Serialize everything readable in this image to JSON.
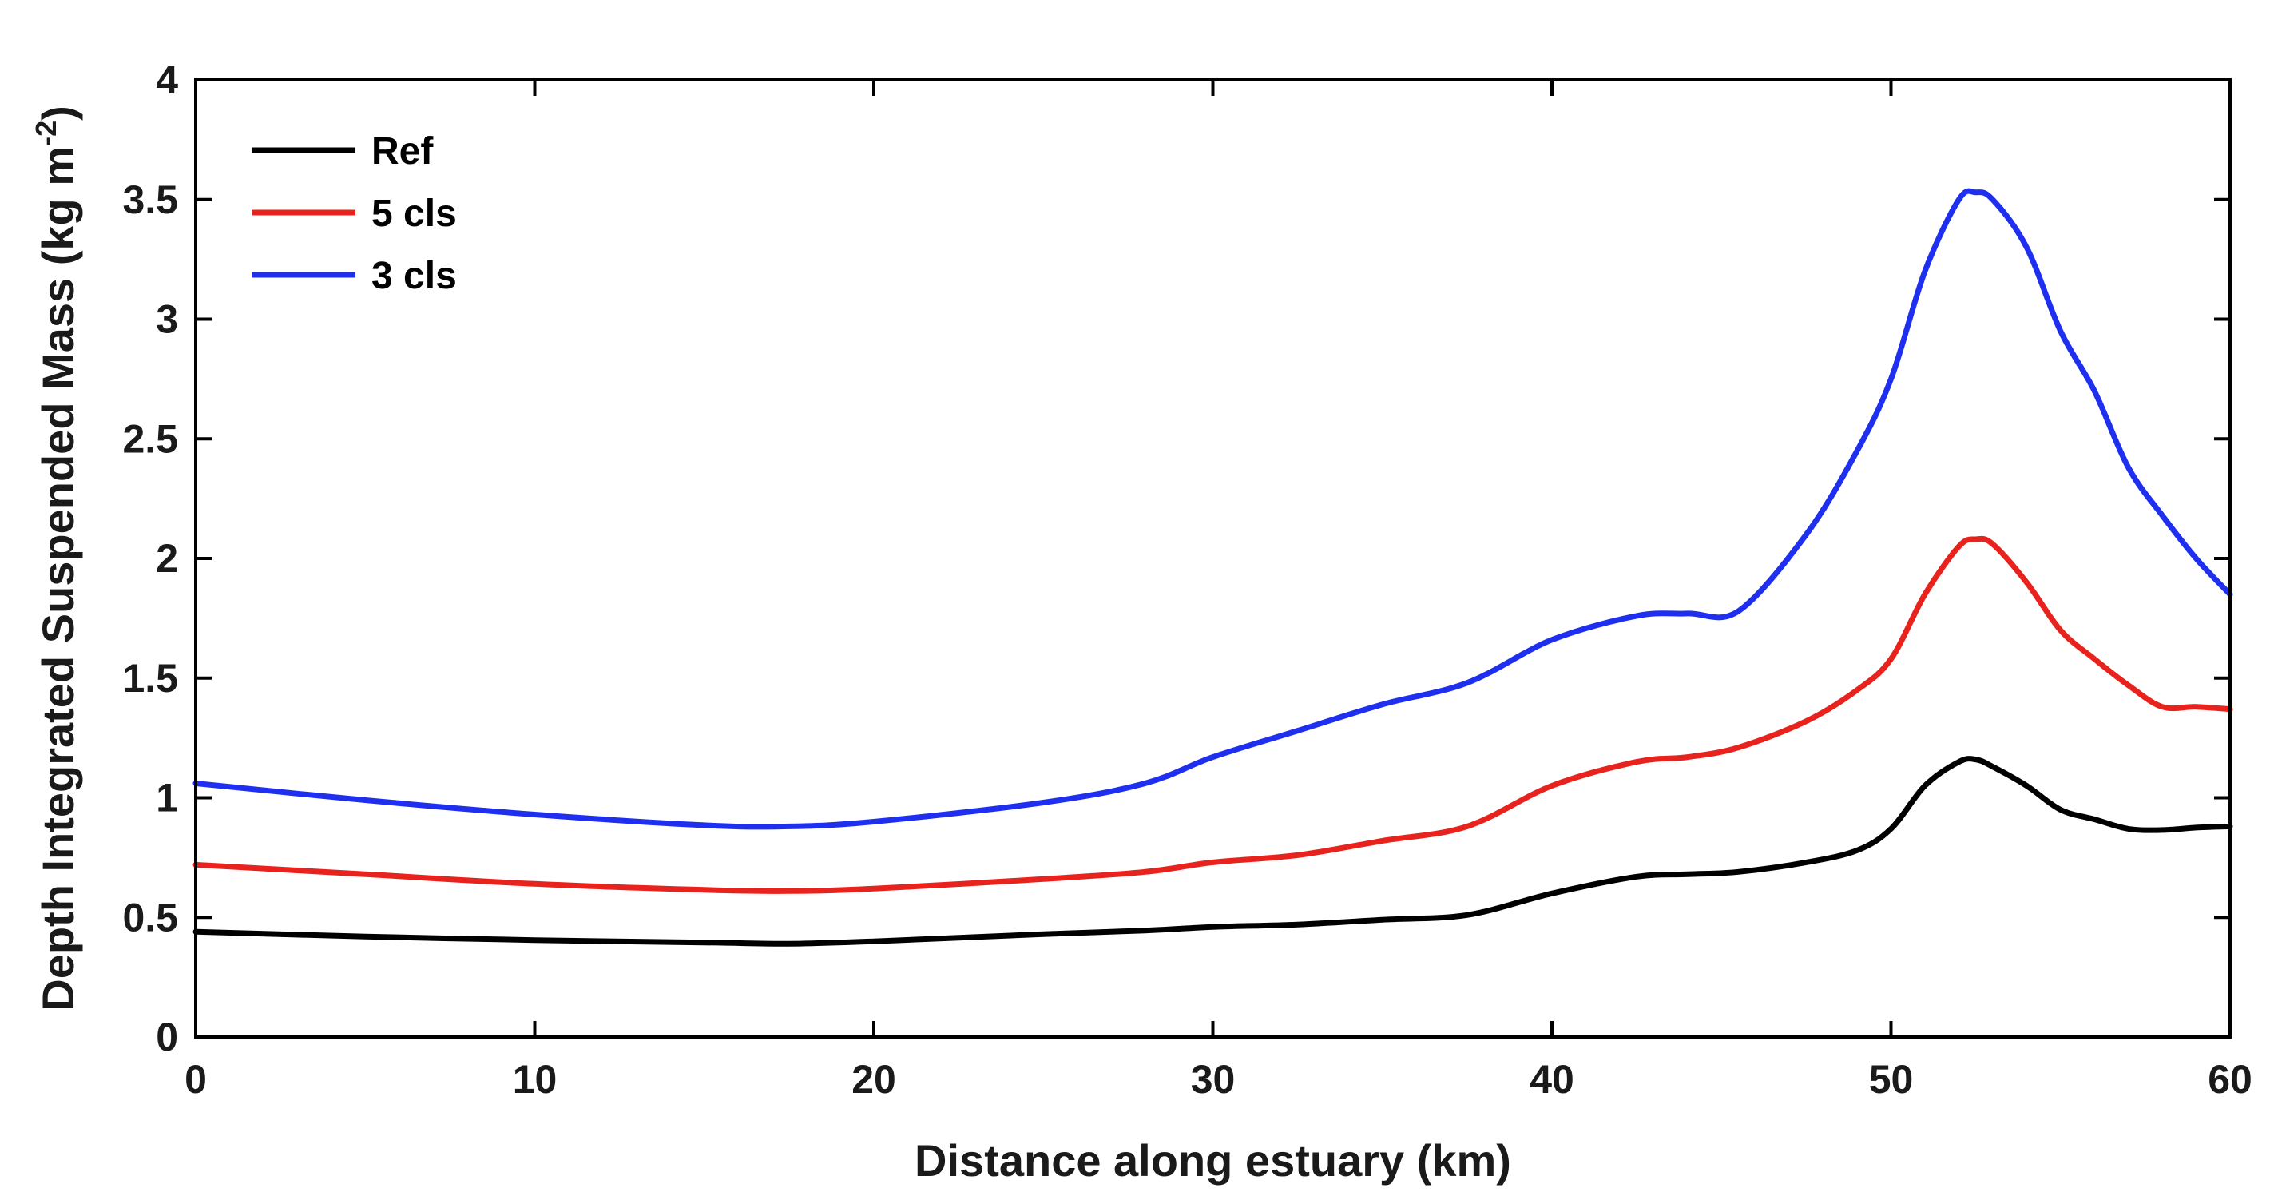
{
  "chart_data": {
    "type": "line",
    "title": "",
    "xlabel": "Distance along estuary (km)",
    "ylabel": "Depth Integrated Suspended Mass (kg m",
    "ylabel_superscript": "-2",
    "ylabel_close": ")",
    "xlim": [
      0,
      60
    ],
    "ylim": [
      0,
      4
    ],
    "xticks": [
      0,
      10,
      20,
      30,
      40,
      50,
      60
    ],
    "yticks": [
      0,
      0.5,
      1,
      1.5,
      2,
      2.5,
      3,
      3.5,
      4
    ],
    "xtick_labels": [
      "0",
      "10",
      "20",
      "30",
      "40",
      "50",
      "60"
    ],
    "ytick_labels": [
      "0",
      "0.5",
      "1",
      "1.5",
      "2",
      "2.5",
      "3",
      "3.5",
      "4"
    ],
    "legend_position": "top-left",
    "x": [
      0,
      5,
      10,
      15,
      17.5,
      20,
      25,
      28,
      30,
      32.5,
      35,
      37.5,
      40,
      42.5,
      44,
      45.5,
      47.5,
      49,
      50,
      51,
      52,
      52.5,
      53,
      54,
      55,
      56,
      57,
      58,
      59,
      60
    ],
    "series": [
      {
        "name": "Ref",
        "color": "#000000",
        "values": [
          0.44,
          0.42,
          0.405,
          0.395,
          0.39,
          0.4,
          0.43,
          0.445,
          0.46,
          0.47,
          0.49,
          0.51,
          0.6,
          0.67,
          0.68,
          0.69,
          0.73,
          0.78,
          0.87,
          1.05,
          1.15,
          1.16,
          1.13,
          1.05,
          0.95,
          0.91,
          0.87,
          0.865,
          0.875,
          0.88
        ]
      },
      {
        "name": "5 cls",
        "color": "#e8231e",
        "values": [
          0.72,
          0.68,
          0.64,
          0.615,
          0.61,
          0.62,
          0.66,
          0.69,
          0.73,
          0.76,
          0.82,
          0.88,
          1.05,
          1.15,
          1.17,
          1.21,
          1.32,
          1.45,
          1.58,
          1.85,
          2.05,
          2.08,
          2.06,
          1.9,
          1.7,
          1.58,
          1.47,
          1.38,
          1.38,
          1.37
        ]
      },
      {
        "name": "3 cls",
        "color": "#1f2ff0",
        "values": [
          1.06,
          0.99,
          0.93,
          0.885,
          0.88,
          0.9,
          0.98,
          1.06,
          1.17,
          1.28,
          1.39,
          1.48,
          1.66,
          1.76,
          1.77,
          1.78,
          2.1,
          2.45,
          2.75,
          3.2,
          3.5,
          3.53,
          3.5,
          3.3,
          2.95,
          2.7,
          2.38,
          2.18,
          2.0,
          1.85
        ]
      }
    ]
  }
}
